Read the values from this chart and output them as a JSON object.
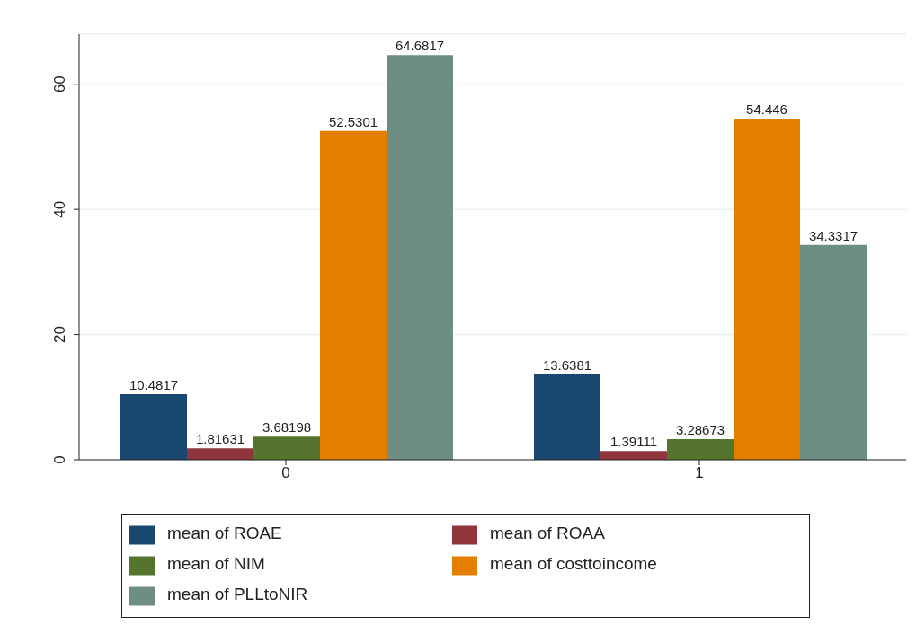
{
  "chart_data": {
    "type": "bar",
    "categories": [
      "0",
      "1"
    ],
    "series": [
      {
        "name": "mean of ROAE",
        "color": "#1a476f",
        "values": [
          10.4817,
          13.6381
        ]
      },
      {
        "name": "mean of ROAA",
        "color": "#90353b",
        "values": [
          1.81631,
          1.39111
        ]
      },
      {
        "name": "mean of NIM",
        "color": "#55752f",
        "values": [
          3.68198,
          3.28673
        ]
      },
      {
        "name": "mean of costtoincome",
        "color": "#e37e00",
        "values": [
          52.5301,
          54.446
        ]
      },
      {
        "name": "mean of PLLtoNIR",
        "color": "#6e8e84",
        "values": [
          64.6817,
          34.3317
        ]
      }
    ],
    "ylim": [
      0,
      68
    ],
    "yticks": [
      0,
      20,
      40,
      60
    ],
    "grid": "y",
    "legend": "bottom",
    "data_labels": true
  }
}
